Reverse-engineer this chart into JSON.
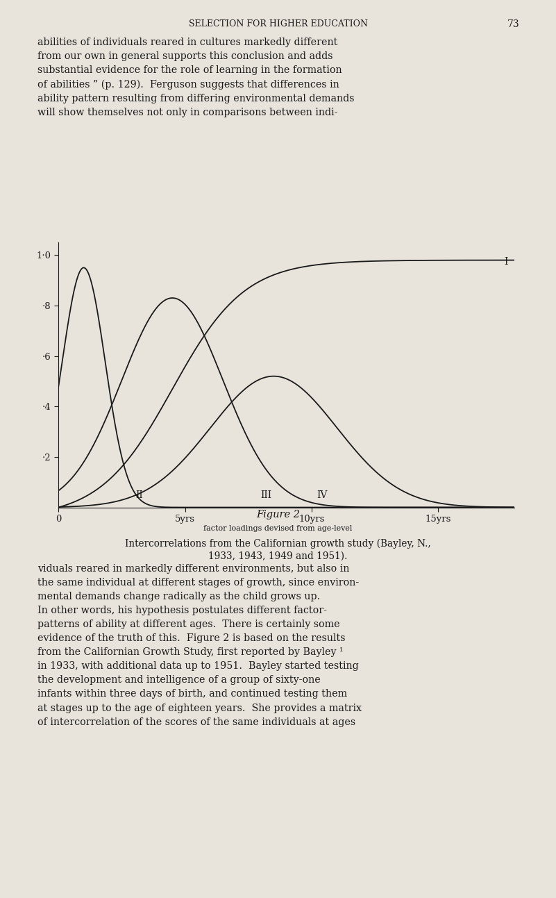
{
  "title_header": "SELECTION FOR HIGHER EDUCATION",
  "title_number": "73",
  "figure_label": "Figure 2",
  "figure_caption_line1": "factor loadings devised from age-level",
  "figure_caption_line2": "Intercorrelations from the Californian growth study (Bayley, N.,",
  "figure_caption_line3": "1933, 1943, 1949 and 1951).",
  "bg_color": "#e8e4db",
  "text_color": "#1a1a1a",
  "curve_color": "#1a1a1a",
  "xlim": [
    0,
    18
  ],
  "ylim": [
    0,
    1.05
  ],
  "xticks": [
    0,
    5,
    10,
    15
  ],
  "xticklabels": [
    "0",
    "5yrs",
    "10yrs",
    "15yrs"
  ],
  "yticks": [
    0.2,
    0.4,
    0.6,
    0.8,
    1.0
  ],
  "yticklabels": [
    "·2",
    "·4",
    "·6",
    "·8",
    "1·0"
  ]
}
